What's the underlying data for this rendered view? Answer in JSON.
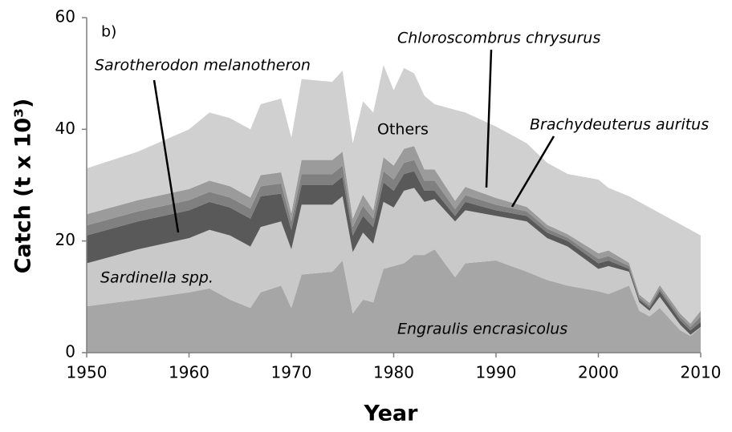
{
  "chart_data": {
    "type": "stacked_area",
    "ylabel": "Catch (t x 10³)",
    "xlabel": "Year",
    "annotations": [
      "b)",
      "Sarotherodon melanotheron",
      "Chloroscombrus chrysurus",
      "Brachydeuterus auritus",
      "Others",
      "Sardinella  spp.",
      "Engraulis encrasicolus"
    ],
    "x": [
      1950,
      1955,
      1960,
      1962,
      1964,
      1966,
      1967,
      1969,
      1970,
      1971,
      1974,
      1975,
      1976,
      1977,
      1978,
      1979,
      1980,
      1981,
      1982,
      1983,
      1984,
      1986,
      1987,
      1990,
      1993,
      1995,
      1997,
      2000,
      2001,
      2003,
      2004,
      2005,
      2006,
      2008,
      2009,
      2010
    ],
    "series": [
      {
        "name": "Engraulis encrasicolus",
        "color": "#a6a6a6",
        "values": [
          8.3,
          9.5,
          10.8,
          11.5,
          9.5,
          8,
          10.8,
          12,
          8,
          14,
          14.5,
          16.5,
          7,
          9.5,
          9,
          15,
          15.5,
          16,
          17.5,
          17.5,
          18.5,
          13.5,
          16,
          16.5,
          14.5,
          13,
          12,
          11,
          10.5,
          12,
          7.5,
          6.5,
          8,
          4,
          3,
          4.5
        ]
      },
      {
        "name": "Sardinella spp.",
        "color": "#c9c9c9",
        "values": [
          7.7,
          9,
          9.7,
          10.5,
          11.5,
          11,
          11.7,
          11.5,
          10.5,
          12.5,
          12,
          11.5,
          11,
          12,
          10.5,
          12,
          10.5,
          13,
          12,
          9.5,
          9,
          10,
          9.5,
          8,
          9,
          7.5,
          7,
          4,
          5,
          2.5,
          1.5,
          1,
          2,
          1,
          0.2,
          0.1
        ]
      },
      {
        "name": "Sarotherodon melanotheron",
        "color": "#595959",
        "values": [
          5,
          5,
          5,
          5,
          5,
          5,
          5.5,
          5,
          3.5,
          3.5,
          3.5,
          3.5,
          3,
          3,
          3,
          3.5,
          3,
          3,
          3,
          2,
          1.5,
          1,
          1.5,
          1,
          1,
          1,
          1,
          1,
          1,
          0.5,
          0.5,
          0.5,
          1,
          0.8,
          0.8,
          0.9
        ]
      },
      {
        "name": "Brachydeuterus auritus",
        "color": "#808080",
        "values": [
          1.8,
          1.8,
          1.8,
          1.8,
          1.8,
          1.8,
          1.8,
          1.8,
          1.5,
          2,
          2,
          2,
          1.5,
          1.8,
          1.5,
          2,
          2,
          2,
          2,
          1.8,
          1.8,
          1.2,
          1.2,
          1,
          0.8,
          0.7,
          0.6,
          0.8,
          0.8,
          0.5,
          0.4,
          0.4,
          0.5,
          0.6,
          0.6,
          1
        ]
      },
      {
        "name": "Chloroscombrus chrysurus",
        "color": "#9b9b9b",
        "values": [
          2,
          2,
          2,
          2,
          2,
          2,
          2,
          2,
          1.5,
          2.5,
          2.5,
          2.5,
          1.5,
          2,
          1.5,
          2.5,
          2.5,
          2.5,
          2.5,
          2,
          2,
          1.5,
          1.5,
          1.2,
          0.8,
          0.7,
          0.6,
          1,
          1,
          0.6,
          0.5,
          0.5,
          0.6,
          0.6,
          0.6,
          1
        ]
      },
      {
        "name": "Others",
        "color": "#d0d0d0",
        "values": [
          8.2,
          8.7,
          10.7,
          12.2,
          12.2,
          12.2,
          12.7,
          13.2,
          13.5,
          14.5,
          14,
          14.5,
          13.5,
          16.7,
          17.5,
          16.5,
          13.5,
          14.5,
          13,
          13.2,
          11.7,
          16.3,
          13.3,
          12.8,
          11.4,
          11.1,
          10.8,
          13.2,
          11.2,
          11.9,
          16.6,
          17.1,
          12.9,
          16,
          16.8,
          13.5
        ]
      }
    ],
    "xlim": [
      1950,
      2010
    ],
    "xticks": [
      1950,
      1960,
      1970,
      1980,
      1990,
      2000,
      2010
    ],
    "ylim": [
      0,
      60
    ],
    "yticks": [
      0,
      20,
      40,
      60
    ]
  }
}
